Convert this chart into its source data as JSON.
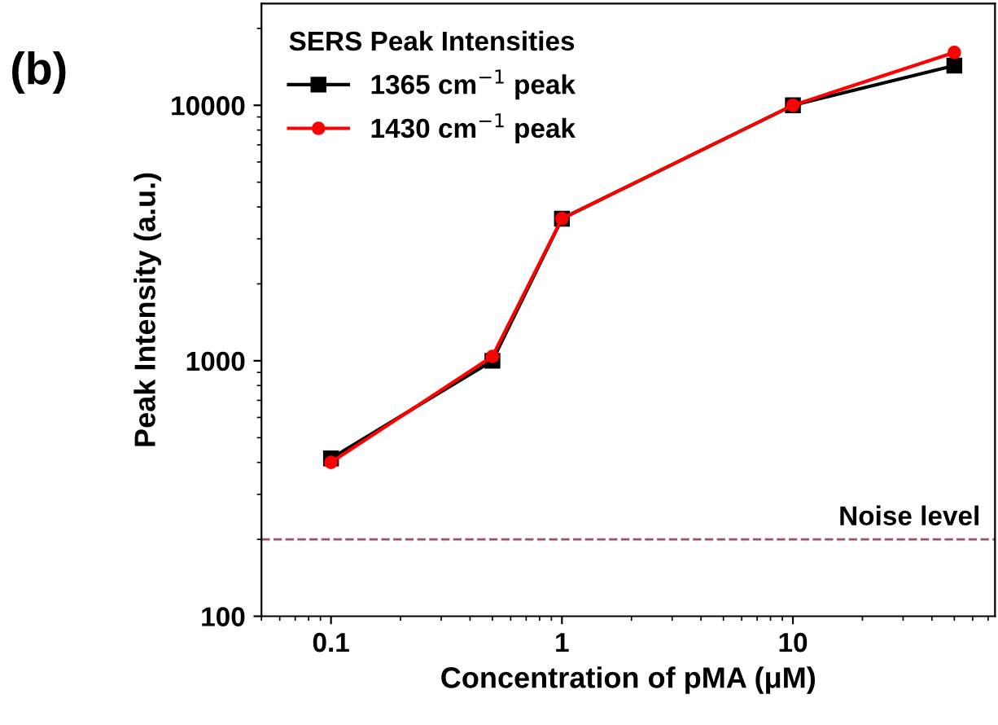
{
  "chart_data": {
    "type": "line",
    "xlabel": "Concentration of pMA (μM)",
    "ylabel": "Peak Intensity (a.u.)",
    "legend_title": "SERS Peak Intensities",
    "x": [
      0.1,
      0.5,
      1,
      10,
      50
    ],
    "series": [
      {
        "name": "1365 cm$^{−1}$ peak",
        "color": "#000000",
        "marker": "square",
        "values": [
          415,
          1000,
          3600,
          10000,
          14300
        ]
      },
      {
        "name": "1430 cm$^{−1}$ peak",
        "color": "#ff0000",
        "marker": "circle",
        "values": [
          400,
          1040,
          3600,
          10000,
          16100
        ]
      }
    ],
    "log": "xy",
    "xlim": [
      0.05,
      75
    ],
    "xticks": [
      0.1,
      1,
      10
    ],
    "ylim": [
      100,
      25000
    ],
    "yticks": [
      100,
      1000,
      10000
    ],
    "ref_lines": [
      {
        "axis": "y",
        "value": 200,
        "label": "Noise level",
        "color": "#a05060",
        "line_style": "dashed"
      }
    ],
    "annotations": [
      "(b)"
    ],
    "legend": "top left",
    "grid": false,
    "line_style": "solid"
  }
}
